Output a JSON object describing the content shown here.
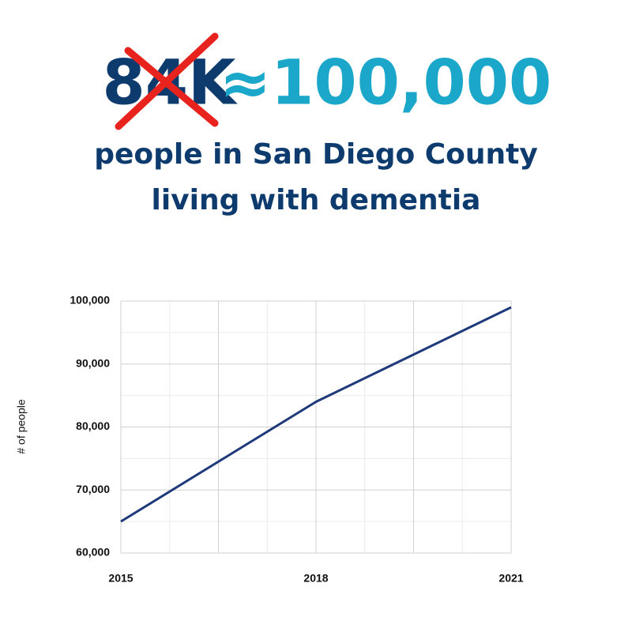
{
  "chart_data": {
    "type": "line",
    "annotations": [
      "84K",
      "≈100,000"
    ],
    "title": [
      "people in San Diego County",
      "living with dementia"
    ],
    "y_label": "# of people",
    "x": [
      2015,
      2018,
      2021
    ],
    "series": [
      {
        "color": "#1f3a7a",
        "values": [
          65000,
          84000,
          99000
        ]
      }
    ],
    "xlim": [
      2015,
      2021
    ],
    "xticks": [
      2015,
      2018,
      2021
    ],
    "xgrid_major": [
      2016.5,
      2019.5
    ],
    "xgrid_minor": [
      2015.75,
      2017.25,
      2018.75,
      2020.25
    ],
    "ylim": [
      60000,
      100000
    ],
    "yticks": [
      {
        "value": 60000,
        "label": "60,000"
      },
      {
        "value": 70000,
        "label": "70,000"
      },
      {
        "value": 80000,
        "label": "80,000"
      },
      {
        "value": 90000,
        "label": "90,000"
      },
      {
        "value": 100000,
        "label": "100,000"
      }
    ],
    "ygrid_minor": [
      65000,
      75000,
      85000,
      95000
    ],
    "grid": true
  }
}
